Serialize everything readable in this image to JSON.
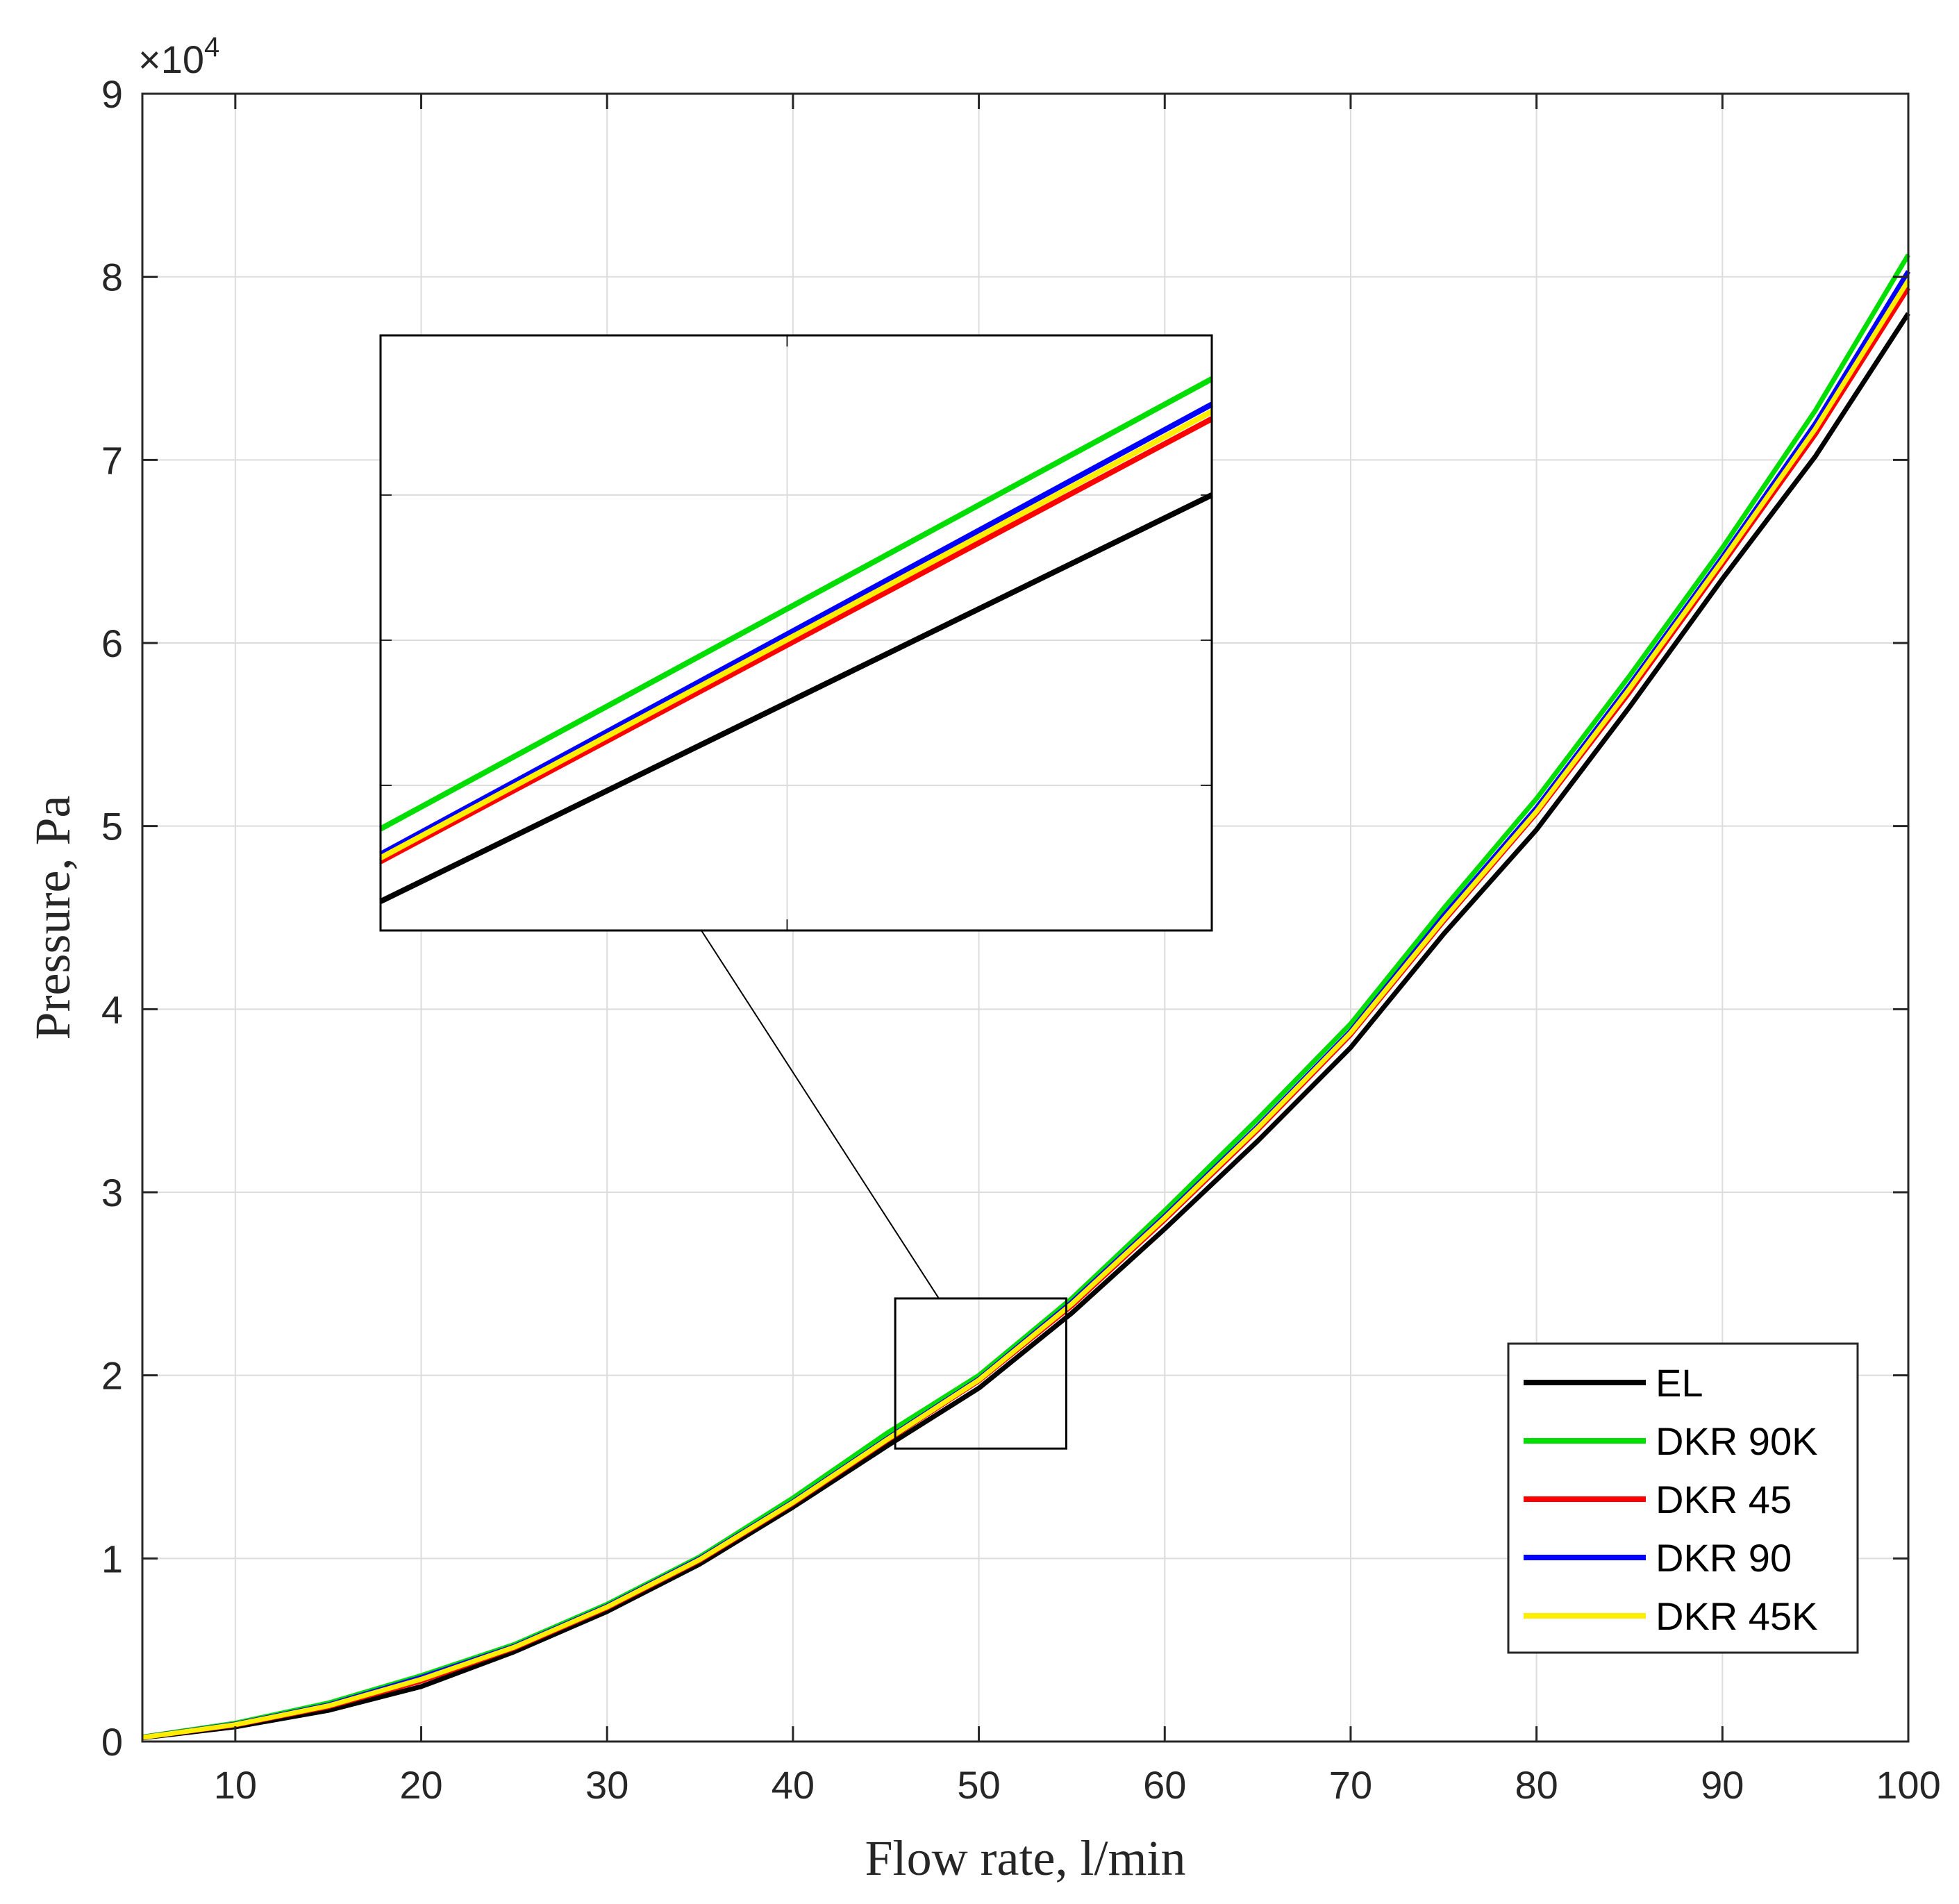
{
  "chart_data": {
    "type": "line",
    "xlabel": "Flow rate, l/min",
    "ylabel": "Pressure, Pa",
    "y_exponent_base": "×10",
    "y_exponent_power": "4",
    "xlim": [
      5,
      100
    ],
    "ylim": [
      0,
      90000
    ],
    "x_ticks": [
      10,
      20,
      30,
      40,
      50,
      60,
      70,
      80,
      90,
      100
    ],
    "x_tick_labels": [
      "10",
      "20",
      "30",
      "40",
      "50",
      "60",
      "70",
      "80",
      "90",
      "100"
    ],
    "y_ticks": [
      0,
      10000,
      20000,
      30000,
      40000,
      50000,
      60000,
      70000,
      80000,
      90000
    ],
    "y_tick_labels": [
      "0",
      "1",
      "2",
      "3",
      "4",
      "5",
      "6",
      "7",
      "8",
      "9"
    ],
    "grid": true,
    "legend_position": "bottom-right",
    "x": [
      5,
      10,
      15,
      20,
      25,
      30,
      35,
      40,
      45,
      50,
      55,
      60,
      65,
      70,
      75,
      80,
      85,
      90,
      95,
      100
    ],
    "series": [
      {
        "name": "EL",
        "color": "#000000",
        "values": [
          200,
          800,
          1700,
          3000,
          4900,
          7100,
          9700,
          12800,
          16100,
          19300,
          23400,
          28000,
          32800,
          37900,
          44100,
          49800,
          56500,
          63500,
          70200,
          78000
        ]
      },
      {
        "name": "DKR 90K",
        "color": "#00dd00",
        "values": [
          250,
          1000,
          2100,
          3600,
          5300,
          7500,
          10100,
          13300,
          16800,
          20000,
          24200,
          29000,
          34000,
          39200,
          45500,
          51500,
          58200,
          65200,
          72700,
          81200
        ]
      },
      {
        "name": "DKR 45",
        "color": "#ff0000",
        "values": [
          220,
          900,
          1900,
          3300,
          5100,
          7300,
          9900,
          13000,
          16400,
          19700,
          23800,
          28500,
          33400,
          38600,
          44800,
          50700,
          57300,
          64300,
          71400,
          79400
        ]
      },
      {
        "name": "DKR 90",
        "color": "#0000ff",
        "values": [
          230,
          950,
          2000,
          3500,
          5200,
          7400,
          10000,
          13100,
          16500,
          19800,
          24000,
          28700,
          33600,
          38800,
          45100,
          51000,
          57700,
          64700,
          72000,
          80300
        ]
      },
      {
        "name": "DKR 45K",
        "color": "#ffee00",
        "values": [
          225,
          920,
          1950,
          3400,
          5150,
          7350,
          9950,
          13050,
          16450,
          19750,
          23900,
          28600,
          33500,
          38700,
          44900,
          50800,
          57500,
          64500,
          71700,
          79800
        ]
      }
    ],
    "inset": {
      "xlim": [
        45.5,
        54.7
      ],
      "ylim": [
        16000,
        24200
      ],
      "series_values": {
        "EL": [
          [
            45.5,
            16400
          ],
          [
            54.7,
            22000
          ]
        ],
        "DKR 90K": [
          [
            45.5,
            17400
          ],
          [
            54.7,
            23600
          ]
        ],
        "DKR 45": [
          [
            45.5,
            16950
          ],
          [
            54.7,
            23050
          ]
        ],
        "DKR 90": [
          [
            45.5,
            17050
          ],
          [
            54.7,
            23250
          ]
        ],
        "DKR 45K": [
          [
            45.5,
            17000
          ],
          [
            54.7,
            23150
          ]
        ]
      }
    }
  }
}
